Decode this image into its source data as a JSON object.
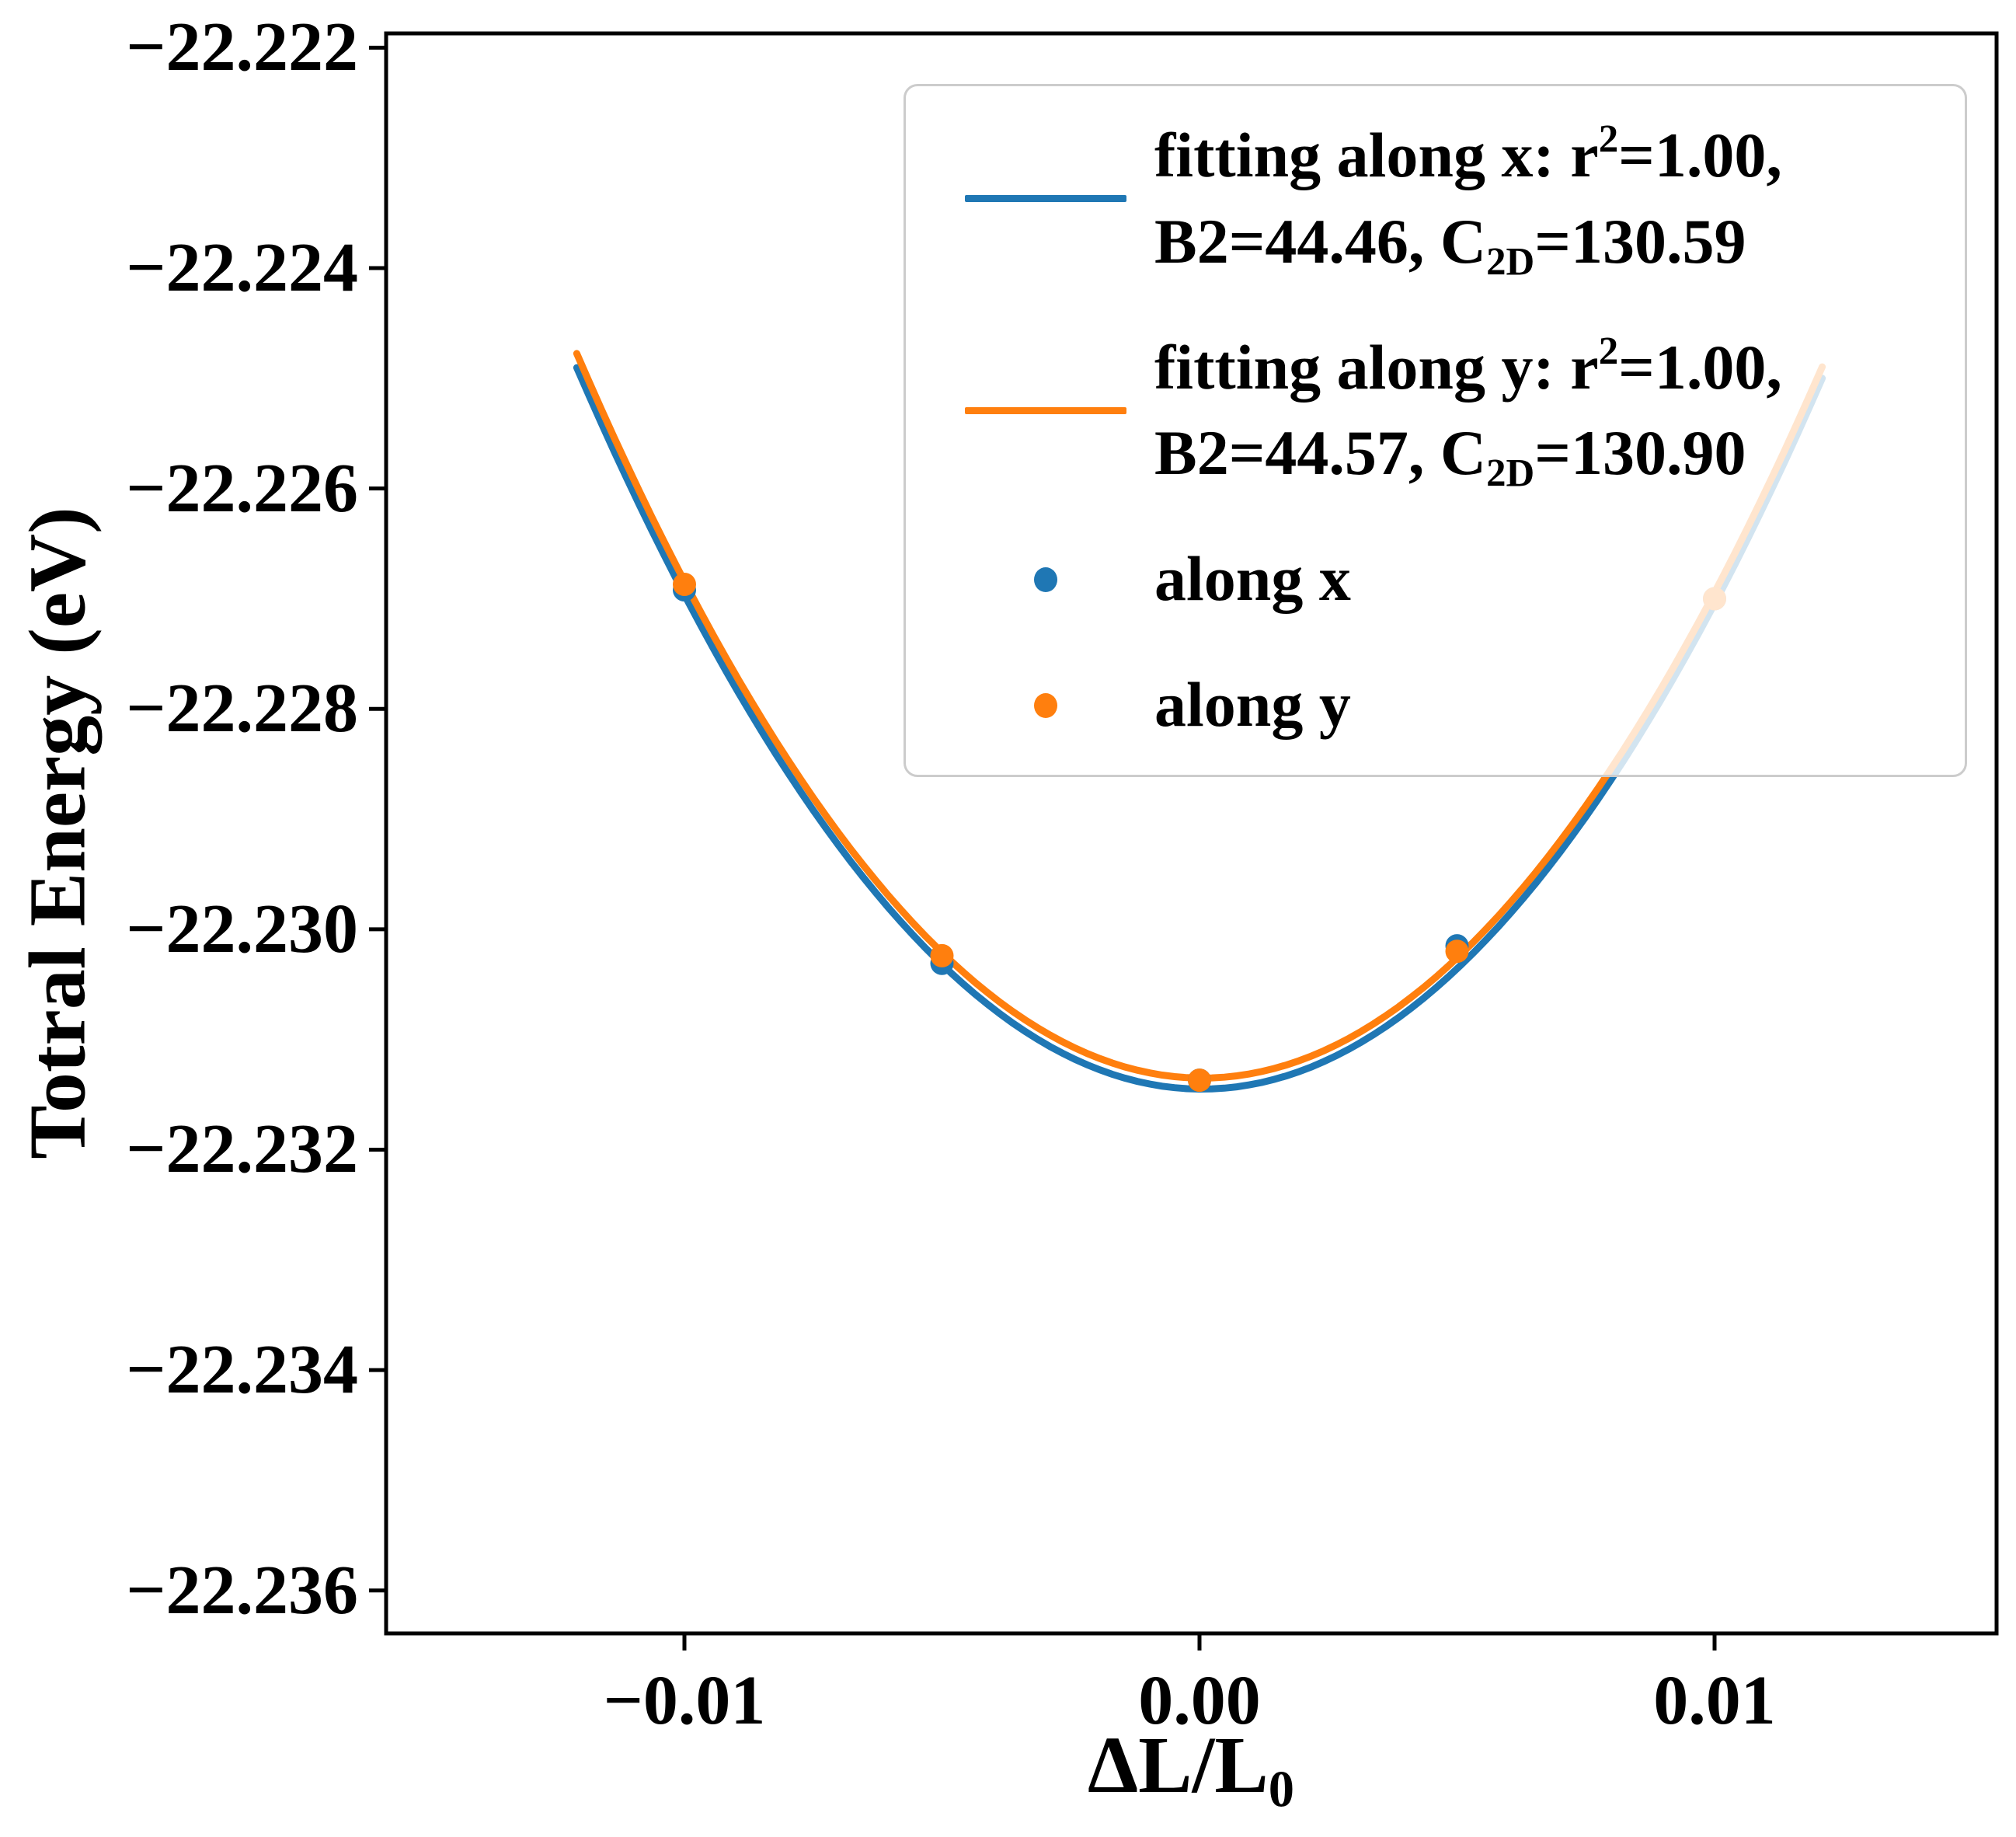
{
  "figure": {
    "ylabel": "Totral Energy (eV)",
    "xlabel_main": "ΔL/L",
    "xlabel_sub": "0",
    "background": "#ffffff"
  },
  "colors": {
    "blue": "#1f77b4",
    "orange": "#ff7f0e",
    "axis": "#000000",
    "legend_border": "#cccccc"
  },
  "chart_data": {
    "type": "scatter",
    "title": "",
    "xlabel": "ΔL/L_0",
    "ylabel": "Totral Energy (eV)",
    "xlim": [
      -0.015792,
      0.015475
    ],
    "ylim": [
      -22.23639,
      -22.22187
    ],
    "grid": false,
    "legend_position": "upper right",
    "xticks": {
      "values": [
        -0.01,
        0.0,
        0.01
      ],
      "labels": [
        "−0.01",
        "0.00",
        "0.01"
      ]
    },
    "yticks": {
      "values": [
        -22.222,
        -22.224,
        -22.226,
        -22.228,
        -22.23,
        -22.232,
        -22.234,
        -22.236
      ],
      "labels": [
        "−22.222",
        "−22.224",
        "−22.226",
        "−22.228",
        "−22.230",
        "−22.232",
        "−22.234",
        "−22.236"
      ]
    },
    "series": [
      {
        "name": "along x",
        "color": "#1f77b4",
        "marker": "circle",
        "points": [
          [
            -0.01,
            -22.22692
          ],
          [
            -0.005,
            -22.23031
          ],
          [
            0.0,
            -22.23137
          ],
          [
            0.005,
            -22.23015
          ],
          [
            0.01,
            -22.227
          ]
        ]
      },
      {
        "name": "along y",
        "color": "#ff7f0e",
        "marker": "circle",
        "points": [
          [
            -0.01,
            -22.22687
          ],
          [
            -0.005,
            -22.23024
          ],
          [
            0.0,
            -22.23137
          ],
          [
            0.005,
            -22.2302
          ],
          [
            0.01,
            -22.227
          ]
        ]
      }
    ],
    "fits": [
      {
        "name": "fitting along x",
        "color": "#1f77b4",
        "r2": "1.00",
        "B2": "44.46",
        "C2D": "130.59",
        "quad_a": 44.46,
        "quad_b": -0.004,
        "quad_c": -22.23145,
        "x_range": [
          -0.01209,
          0.01209
        ]
      },
      {
        "name": "fitting along y",
        "color": "#ff7f0e",
        "r2": "1.00",
        "B2": "44.57",
        "C2D": "130.90",
        "quad_a": 44.57,
        "quad_b": -0.005,
        "quad_c": -22.23135,
        "x_range": [
          -0.01209,
          0.01209
        ]
      }
    ]
  },
  "legend": {
    "entries": [
      {
        "handle": "line",
        "color": "#1f77b4",
        "line1_pre": "fitting along x: r",
        "line1_sup": "2",
        "line1_post": "=1.00,",
        "line2_pre": "B2=44.46, C",
        "line2_sub": "2D",
        "line2_post": "=130.59"
      },
      {
        "handle": "line",
        "color": "#ff7f0e",
        "line1_pre": "fitting along y: r",
        "line1_sup": "2",
        "line1_post": "=1.00,",
        "line2_pre": "B2=44.57, C",
        "line2_sub": "2D",
        "line2_post": "=130.90"
      },
      {
        "handle": "dot",
        "color": "#1f77b4",
        "label": "along x"
      },
      {
        "handle": "dot",
        "color": "#ff7f0e",
        "label": "along y"
      }
    ]
  }
}
